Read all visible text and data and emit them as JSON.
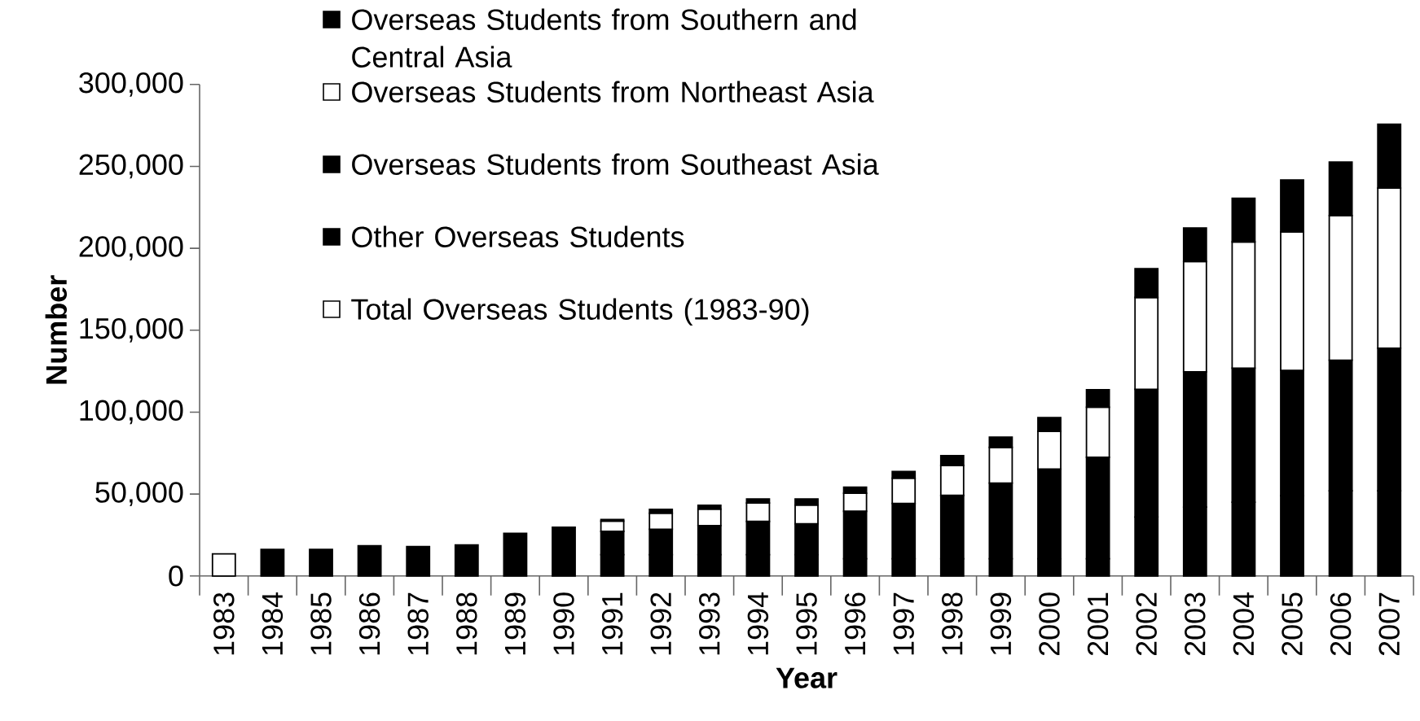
{
  "chart_data": {
    "type": "bar",
    "stacked": true,
    "xlabel": "Year",
    "ylabel": "Number",
    "categories": [
      "1983",
      "1984",
      "1985",
      "1986",
      "1987",
      "1988",
      "1989",
      "1990",
      "1991",
      "1992",
      "1993",
      "1994",
      "1995",
      "1996",
      "1997",
      "1998",
      "1999",
      "2000",
      "2001",
      "2002",
      "2003",
      "2004",
      "2005",
      "2006",
      "2007"
    ],
    "series": [
      {
        "name": "Total Overseas Students (1983-90)",
        "colors": [
          "#ffffff",
          "#000000",
          "#000000",
          "#000000",
          "#000000",
          "#000000",
          "#000000",
          "#000000",
          null,
          null,
          null,
          null,
          null,
          null,
          null,
          null,
          null,
          null,
          null,
          null,
          null,
          null,
          null,
          null,
          null
        ],
        "values": [
          13500,
          16200,
          16200,
          18500,
          18000,
          19000,
          26000,
          29700,
          null,
          null,
          null,
          null,
          null,
          null,
          null,
          null,
          null,
          null,
          null,
          null,
          null,
          null,
          null,
          null,
          null
        ]
      },
      {
        "name": "Other Overseas Students",
        "color": "#000000",
        "values": [
          null,
          null,
          null,
          null,
          null,
          null,
          null,
          null,
          13000,
          13000,
          13000,
          13000,
          13000,
          10500,
          10500,
          10500,
          10500,
          10500,
          10500,
          36000,
          42000,
          45000,
          49000,
          52000,
          52000
        ]
      },
      {
        "name": "Overseas Students from Southeast Asia",
        "color": "#000000",
        "values": [
          null,
          null,
          null,
          null,
          null,
          null,
          null,
          null,
          14200,
          15500,
          17800,
          20300,
          18800,
          29000,
          33800,
          38700,
          46200,
          54700,
          62000,
          77900,
          82600,
          81900,
          76500,
          79700,
          87000
        ]
      },
      {
        "name": "Overseas Students from Northeast Asia",
        "color": "#ffffff",
        "values": [
          null,
          null,
          null,
          null,
          null,
          null,
          null,
          null,
          6300,
          9800,
          10000,
          11200,
          11500,
          11000,
          15400,
          18300,
          21800,
          23100,
          30500,
          56100,
          67300,
          77000,
          84500,
          88300,
          97800
        ]
      },
      {
        "name": "Overseas Students from Southern and Central Asia",
        "color": "#000000",
        "values": [
          null,
          null,
          null,
          null,
          null,
          null,
          null,
          null,
          1000,
          2400,
          2400,
          2500,
          3700,
          3700,
          4100,
          6000,
          6200,
          8400,
          10700,
          17600,
          20500,
          26600,
          31700,
          32600,
          38900
        ]
      }
    ],
    "ylim": [
      0,
      300000
    ],
    "yticks": [
      {
        "value": 0,
        "label": "0"
      },
      {
        "value": 50000,
        "label": "50,000"
      },
      {
        "value": 100000,
        "label": "100,000"
      },
      {
        "value": 150000,
        "label": "150,000"
      },
      {
        "value": 200000,
        "label": "200,000"
      },
      {
        "value": 250000,
        "label": "250,000"
      },
      {
        "value": 300000,
        "label": "300,000"
      }
    ],
    "legend": "top left"
  }
}
